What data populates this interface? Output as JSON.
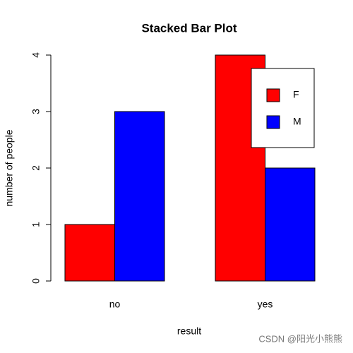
{
  "chart_data": {
    "type": "bar",
    "title": "Stacked Bar Plot",
    "xlabel": "result",
    "ylabel": "number of people",
    "categories": [
      "no",
      "yes"
    ],
    "series": [
      {
        "name": "F",
        "color": "#ff0000",
        "values": [
          1,
          4
        ]
      },
      {
        "name": "M",
        "color": "#0000ff",
        "values": [
          3,
          2
        ]
      }
    ],
    "ylim": [
      0,
      4
    ],
    "yticks": [
      0,
      1,
      2,
      3,
      4
    ],
    "legend": "topright"
  },
  "watermark": "CSDN @阳光小熊熊"
}
